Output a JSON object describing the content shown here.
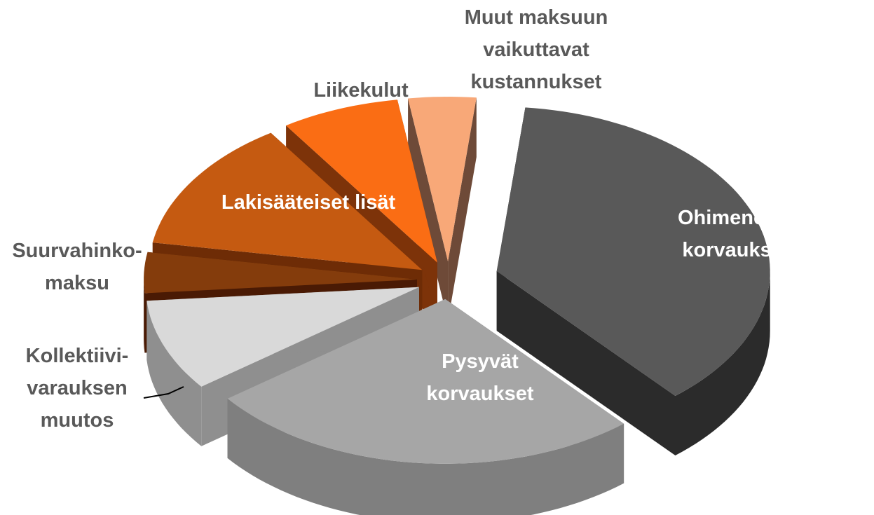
{
  "chart_data": {
    "type": "pie3d",
    "categories": [
      "Ohimenevät\nkorvaukset",
      "Pysyvät\nkorvaukset",
      "Kollektiivi-\nvarauksen\nmuutos",
      "Suurvahinko-\nmaksu",
      "Lakisääteiset lisät",
      "Liikekulut",
      "Muut maksuun\nvaikuttavat\nkustannukset"
    ],
    "values": [
      37,
      26,
      9,
      4,
      13,
      7,
      4
    ],
    "colors": [
      "#595959",
      "#a6a6a6",
      "#d9d9d9",
      "#843c0c",
      "#c55a11",
      "#fa6d14",
      "#f8a878"
    ],
    "side_colors": [
      "#2b2b2b",
      "#7f7f7f",
      "#8f8f8f",
      "#4a1a04",
      "#6e2c06",
      "#7d3309",
      "#6e4a38"
    ]
  }
}
